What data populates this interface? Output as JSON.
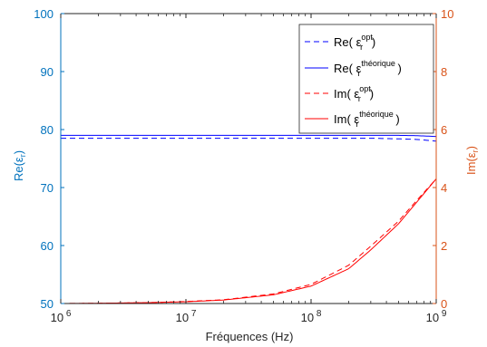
{
  "chart_data": {
    "type": "line",
    "xscale": "log",
    "xlim": [
      1000000,
      1000000000
    ],
    "xlabel": "Fréquences (Hz)",
    "x_ticks": [
      {
        "base": "10",
        "exp": "6",
        "value": 1000000
      },
      {
        "base": "10",
        "exp": "7",
        "value": 10000000
      },
      {
        "base": "10",
        "exp": "8",
        "value": 100000000
      },
      {
        "base": "10",
        "exp": "9",
        "value": 1000000000
      }
    ],
    "y_left": {
      "label_main": "Re(",
      "label_sym": "ε",
      "label_sub": "r",
      "label_end": ")",
      "lim": [
        50,
        100
      ],
      "ticks": [
        "50",
        "60",
        "70",
        "80",
        "90",
        "100"
      ],
      "color": "#0072BD"
    },
    "y_right": {
      "label_main": "Im(",
      "label_sym": "ε",
      "label_sub": "r",
      "label_end": ")",
      "lim": [
        0,
        10
      ],
      "ticks": [
        "0",
        "2",
        "4",
        "6",
        "8",
        "10"
      ],
      "color": "#D95319"
    },
    "grid": false,
    "legend_position": "top-right",
    "x": [
      1000000,
      2000000,
      5000000,
      10000000,
      20000000,
      50000000,
      100000000,
      200000000,
      300000000,
      500000000,
      700000000,
      1000000000
    ],
    "series": [
      {
        "legend_prefix": "Re( ",
        "sym": "ε",
        "sub": "r",
        "sup": "opt",
        "legend_suffix": ")",
        "axis": "left",
        "color": "#0000FF",
        "dash": "dashed",
        "values": [
          78.5,
          78.5,
          78.5,
          78.5,
          78.5,
          78.5,
          78.5,
          78.5,
          78.5,
          78.4,
          78.3,
          78.0
        ]
      },
      {
        "legend_prefix": "Re( ",
        "sym": "ε",
        "sub": "r",
        "sup": "théorique",
        "legend_suffix": " )",
        "axis": "left",
        "color": "#0000FF",
        "dash": "solid",
        "values": [
          79.0,
          79.0,
          79.0,
          79.0,
          79.0,
          79.0,
          79.0,
          79.0,
          79.0,
          79.0,
          78.95,
          78.8
        ]
      },
      {
        "legend_prefix": "Im( ",
        "sym": "ε",
        "sub": "r",
        "sup": "opt",
        "legend_suffix": ")",
        "axis": "right",
        "color": "#FF0000",
        "dash": "dashed",
        "values": [
          0.0,
          0.01,
          0.03,
          0.07,
          0.13,
          0.33,
          0.66,
          1.32,
          1.98,
          2.84,
          3.56,
          4.3
        ]
      },
      {
        "legend_prefix": "Im( ",
        "sym": "ε",
        "sub": "r",
        "sup": "théorique",
        "legend_suffix": " )",
        "axis": "right",
        "color": "#FF0000",
        "dash": "solid",
        "values": [
          0.0,
          0.01,
          0.03,
          0.06,
          0.12,
          0.3,
          0.6,
          1.2,
          1.85,
          2.75,
          3.5,
          4.3
        ]
      }
    ]
  }
}
